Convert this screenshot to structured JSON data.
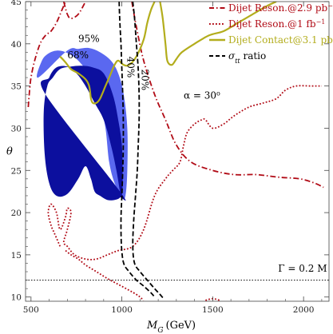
{
  "chart_data": {
    "type": "line",
    "xlabel": "M_G (GeV)",
    "xlabel_parts": [
      "M",
      "G",
      "(GeV)"
    ],
    "ylabel": "θ",
    "xlim": [
      470,
      2140
    ],
    "ylim": [
      9.5,
      45
    ],
    "xticks": [
      500,
      1000,
      1500,
      2000
    ],
    "yticks": [
      10,
      15,
      20,
      25,
      30,
      35,
      40,
      45
    ],
    "grid": false,
    "legend_position": "top-right",
    "legend": [
      {
        "label": "Dijet Reson.@2.9 pb",
        "sup": "−1",
        "color": "#b10b16",
        "style": "dash-dot"
      },
      {
        "label": "Dijet Reson.@1 fb",
        "sup": "−1",
        "color": "#b10b16",
        "style": "dotted"
      },
      {
        "label": "Dijet Contact@3.1 pb",
        "sup": "−1",
        "color": "#b3ad1c",
        "style": "solid"
      },
      {
        "label": "σ",
        "sub": "tt",
        "suffix": " ratio",
        "color": "#000000",
        "style": "dashed"
      }
    ],
    "annotations": {
      "alpha": "α = 30",
      "alpha_sup": "o",
      "gamma": "Γ = 0.2 M",
      "cl95": "95%",
      "cl68": "68%",
      "contour40": "40%",
      "contour20": "20%"
    },
    "colors": {
      "region95": "#5a68f0",
      "region68": "#0c0f9e",
      "dijet_reson": "#b10b16",
      "dijet_contact": "#b3ad1c",
      "sigma_ratio": "#000000"
    },
    "series": [
      {
        "name": "95%",
        "kind": "region",
        "points": [
          [
            540,
            36
          ],
          [
            560,
            38
          ],
          [
            600,
            38.9
          ],
          [
            650,
            39.2
          ],
          [
            700,
            38.9
          ],
          [
            760,
            38
          ],
          [
            830,
            36
          ],
          [
            880,
            33
          ],
          [
            910,
            30
          ],
          [
            930,
            26
          ],
          [
            960,
            23.5
          ],
          [
            1000,
            21.8
          ],
          [
            1020,
            22
          ],
          [
            1030,
            25
          ],
          [
            1030,
            30
          ],
          [
            1010,
            34
          ],
          [
            980,
            36.5
          ],
          [
            940,
            38
          ],
          [
            880,
            39
          ],
          [
            820,
            39.5
          ],
          [
            760,
            39.4
          ],
          [
            700,
            39.2
          ]
        ]
      },
      {
        "name": "68%",
        "kind": "region",
        "points": [
          [
            580,
            34
          ],
          [
            600,
            36
          ],
          [
            640,
            37.2
          ],
          [
            700,
            37.3
          ],
          [
            750,
            36.5
          ],
          [
            800,
            35
          ],
          [
            850,
            33
          ],
          [
            900,
            31
          ],
          [
            940,
            28
          ],
          [
            970,
            25
          ],
          [
            990,
            22.5
          ],
          [
            1000,
            22
          ],
          [
            1005,
            24
          ],
          [
            1000,
            28
          ],
          [
            980,
            31
          ],
          [
            950,
            34
          ],
          [
            900,
            36.5
          ],
          [
            840,
            37.2
          ],
          [
            780,
            37.4
          ],
          [
            720,
            37.3
          ],
          [
            660,
            37
          ],
          [
            620,
            36
          ],
          [
            590,
            35
          ],
          [
            570,
            32
          ],
          [
            575,
            27
          ],
          [
            600,
            23.5
          ],
          [
            640,
            22
          ],
          [
            700,
            22.2
          ],
          [
            760,
            24
          ],
          [
            800,
            25.5
          ],
          [
            830,
            24
          ],
          [
            850,
            22.5
          ],
          [
            880,
            22
          ],
          [
            920,
            21.5
          ],
          [
            960,
            21.5
          ],
          [
            990,
            21.8
          ],
          [
            990,
            22.5
          ]
        ]
      },
      {
        "name": "Dijet Reson.@2.9 pb−1",
        "points": [
          [
            485,
            32.5
          ],
          [
            490,
            34
          ],
          [
            500,
            36
          ],
          [
            520,
            38
          ],
          [
            550,
            40
          ],
          [
            580,
            41
          ],
          [
            610,
            41.5
          ],
          [
            640,
            42.5
          ],
          [
            670,
            44
          ],
          [
            690,
            45
          ]
        ]
      },
      {
        "name": "Dijet Reson.@2.9 pb−1 (upper-middle)",
        "points": [
          [
            680,
            45
          ],
          [
            700,
            43.5
          ],
          [
            720,
            43
          ],
          [
            760,
            43.5
          ],
          [
            800,
            45
          ]
        ]
      },
      {
        "name": "Dijet Reson.@2.9 pb−1 (right)",
        "points": [
          [
            1055,
            45
          ],
          [
            1080,
            42
          ],
          [
            1120,
            38
          ],
          [
            1180,
            34
          ],
          [
            1240,
            31
          ],
          [
            1300,
            28
          ],
          [
            1380,
            26
          ],
          [
            1500,
            25
          ],
          [
            1620,
            24.5
          ],
          [
            1740,
            24.5
          ],
          [
            1860,
            24.2
          ],
          [
            1980,
            24
          ],
          [
            2060,
            23.5
          ],
          [
            2110,
            23
          ]
        ]
      },
      {
        "name": "Dijet Reson.@1 fb−1",
        "points": [
          [
            660,
            16
          ],
          [
            630,
            17.5
          ],
          [
            610,
            18.5
          ],
          [
            595,
            20
          ],
          [
            610,
            21
          ],
          [
            640,
            20
          ],
          [
            660,
            18
          ],
          [
            690,
            19.5
          ],
          [
            700,
            20.5
          ],
          [
            720,
            20
          ],
          [
            700,
            18
          ],
          [
            680,
            16.5
          ],
          [
            700,
            16
          ],
          [
            740,
            15
          ],
          [
            800,
            14.5
          ],
          [
            860,
            14.5
          ],
          [
            920,
            15
          ],
          [
            980,
            15.5
          ],
          [
            1060,
            16
          ],
          [
            1120,
            18
          ],
          [
            1180,
            22
          ],
          [
            1240,
            24
          ],
          [
            1280,
            25
          ],
          [
            1320,
            26
          ],
          [
            1340,
            28
          ],
          [
            1360,
            29.5
          ],
          [
            1400,
            30.5
          ],
          [
            1440,
            31
          ],
          [
            1460,
            31
          ],
          [
            1500,
            30
          ],
          [
            1560,
            30.5
          ],
          [
            1620,
            31.5
          ],
          [
            1700,
            32.5
          ],
          [
            1780,
            33
          ],
          [
            1850,
            33.5
          ],
          [
            1900,
            34.5
          ],
          [
            1960,
            35
          ],
          [
            2040,
            35
          ],
          [
            2100,
            35
          ]
        ]
      },
      {
        "name": "Dijet Reson.@1 fb−1 (lower)",
        "points": [
          [
            690,
            15.5
          ],
          [
            720,
            15
          ],
          [
            760,
            14.5
          ],
          [
            800,
            13.8
          ],
          [
            860,
            13
          ],
          [
            920,
            12.2
          ],
          [
            980,
            11.5
          ],
          [
            1040,
            10.8
          ],
          [
            1080,
            10.3
          ],
          [
            1100,
            10
          ],
          [
            1110,
            9.8
          ],
          [
            1120,
            9.6
          ]
        ]
      },
      {
        "name": "Dijet Reson.@1 fb−1 (bottom)",
        "points": [
          [
            1460,
            9.6
          ],
          [
            1500,
            9.8
          ],
          [
            1540,
            9.6
          ]
        ]
      },
      {
        "name": "Dijet Contact@3.1 pb−1",
        "points": [
          [
            660,
            38.5
          ],
          [
            690,
            37.8
          ],
          [
            720,
            37
          ],
          [
            760,
            36.5
          ],
          [
            800,
            35.8
          ],
          [
            820,
            35
          ],
          [
            830,
            33.5
          ],
          [
            840,
            33
          ],
          [
            860,
            33
          ],
          [
            880,
            33.5
          ],
          [
            910,
            35
          ],
          [
            930,
            36
          ],
          [
            960,
            37.5
          ],
          [
            980,
            38
          ],
          [
            1010,
            37.5
          ],
          [
            1040,
            37.5
          ],
          [
            1080,
            38.5
          ],
          [
            1120,
            40.5
          ],
          [
            1140,
            42.5
          ],
          [
            1160,
            44
          ],
          [
            1180,
            45
          ]
        ]
      },
      {
        "name": "Dijet Contact@3.1 pb−1 (right)",
        "points": [
          [
            1210,
            45
          ],
          [
            1225,
            43
          ],
          [
            1240,
            40
          ],
          [
            1250,
            38
          ],
          [
            1275,
            37.5
          ],
          [
            1300,
            38.2
          ],
          [
            1330,
            39
          ],
          [
            1400,
            40
          ],
          [
            1480,
            41
          ],
          [
            1560,
            41.5
          ],
          [
            1640,
            42.5
          ],
          [
            1720,
            43.5
          ],
          [
            1800,
            44.5
          ],
          [
            1850,
            45
          ]
        ]
      },
      {
        "name": "σtt ratio 40%",
        "points": [
          [
            985,
            45
          ],
          [
            988,
            43
          ],
          [
            995,
            40
          ],
          [
            1000,
            37
          ],
          [
            1005,
            34
          ],
          [
            1008,
            31
          ],
          [
            1008,
            28
          ],
          [
            1005,
            25
          ],
          [
            1000,
            22
          ],
          [
            995,
            19
          ],
          [
            998,
            16
          ],
          [
            1010,
            14
          ],
          [
            1040,
            13
          ],
          [
            1080,
            12
          ],
          [
            1120,
            11.3
          ],
          [
            1160,
            10.5
          ],
          [
            1180,
            10
          ]
        ]
      },
      {
        "name": "σtt ratio 20%",
        "points": [
          [
            1060,
            45
          ],
          [
            1070,
            43
          ],
          [
            1080,
            40
          ],
          [
            1090,
            37
          ],
          [
            1095,
            34
          ],
          [
            1095,
            31
          ],
          [
            1090,
            28
          ],
          [
            1085,
            25
          ],
          [
            1075,
            22
          ],
          [
            1065,
            19
          ],
          [
            1060,
            16
          ],
          [
            1070,
            14
          ],
          [
            1100,
            13
          ],
          [
            1140,
            12
          ],
          [
            1180,
            11
          ],
          [
            1210,
            10.3
          ],
          [
            1230,
            9.8
          ]
        ]
      },
      {
        "name": "Γ = 0.2 M",
        "points": [
          [
            470,
            12
          ],
          [
            2140,
            12
          ]
        ]
      }
    ]
  }
}
